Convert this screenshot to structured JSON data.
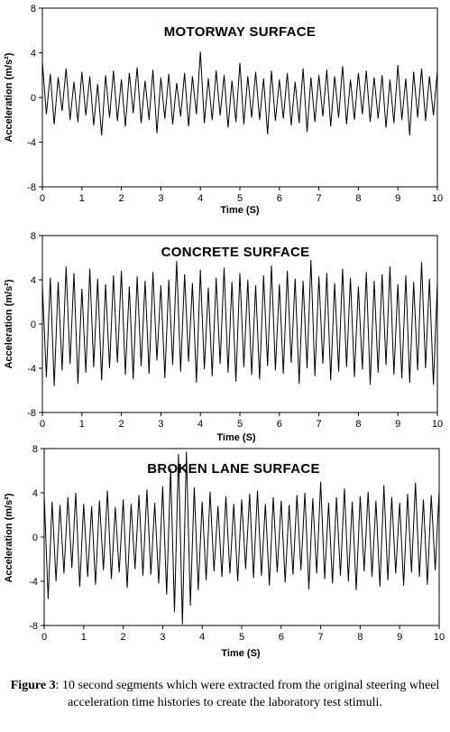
{
  "chart_data": [
    {
      "type": "line",
      "title": "MOTORWAY SURFACE",
      "xlabel": "Time (S)",
      "ylabel": "Acceleration (m/s²)",
      "xlim": [
        0,
        10
      ],
      "ylim": [
        -8,
        8
      ],
      "x_ticks": [
        "0",
        "1",
        "2",
        "3",
        "4",
        "5",
        "6",
        "7",
        "8",
        "9",
        "10"
      ],
      "y_ticks": [
        "8",
        "4",
        "0",
        "-4",
        "-8"
      ],
      "series": [
        {
          "x": [
            0,
            0.1,
            0.2,
            0.3,
            0.4,
            0.5,
            0.6,
            0.7,
            0.8,
            0.9,
            1,
            1.1,
            1.2,
            1.3,
            1.4,
            1.5,
            1.6,
            1.7,
            1.8,
            1.9,
            2,
            2.1,
            2.2,
            2.3,
            2.4,
            2.5,
            2.6,
            2.7,
            2.8,
            2.9,
            3,
            3.1,
            3.2,
            3.3,
            3.4,
            3.5,
            3.6,
            3.7,
            3.8,
            3.9,
            4,
            4.1,
            4.2,
            4.3,
            4.4,
            4.5,
            4.6,
            4.7,
            4.8,
            4.9,
            5,
            5.1,
            5.2,
            5.3,
            5.4,
            5.5,
            5.6,
            5.7,
            5.8,
            5.9,
            6,
            6.1,
            6.2,
            6.3,
            6.4,
            6.5,
            6.6,
            6.7,
            6.8,
            6.9,
            7,
            7.1,
            7.2,
            7.3,
            7.4,
            7.5,
            7.6,
            7.7,
            7.8,
            7.9,
            8,
            8.1,
            8.2,
            8.3,
            8.4,
            8.5,
            8.6,
            8.7,
            8.8,
            8.9,
            9,
            9.1,
            9.2,
            9.3,
            9.4,
            9.5,
            9.6,
            9.7,
            9.8,
            9.9,
            10
          ],
          "y": [
            3.2,
            -1.5,
            2.1,
            -2.4,
            1.8,
            -1.2,
            2.6,
            -2.0,
            1.4,
            -2.2,
            2.3,
            -1.6,
            1.9,
            -2.5,
            1.2,
            -3.4,
            2.0,
            -1.8,
            2.4,
            -2.1,
            1.6,
            -2.6,
            2.2,
            -1.4,
            2.7,
            -2.3,
            1.5,
            -2.0,
            2.5,
            -3.2,
            1.8,
            -1.9,
            2.1,
            -2.4,
            1.3,
            -1.7,
            2.2,
            -2.6,
            1.9,
            -1.5,
            4.1,
            -2.3,
            1.7,
            -2.0,
            2.4,
            -1.6,
            2.0,
            -2.7,
            1.5,
            -2.2,
            3.1,
            -2.4,
            1.9,
            -1.8,
            2.3,
            -2.0,
            1.7,
            -3.3,
            2.4,
            -2.1,
            1.6,
            -1.9,
            2.2,
            -2.5,
            1.4,
            -2.3,
            2.6,
            -3.1,
            1.8,
            -2.2,
            2.0,
            -1.7,
            2.5,
            -2.6,
            1.9,
            -1.8,
            2.8,
            -2.4,
            1.6,
            -2.0,
            2.2,
            -1.5,
            2.4,
            -2.2,
            1.8,
            -1.9,
            2.0,
            -2.7,
            1.6,
            -2.3,
            2.9,
            -2.0,
            1.7,
            -3.4,
            2.3,
            -1.8,
            2.6,
            -2.1,
            1.9,
            -1.6,
            2.4
          ]
        }
      ]
    },
    {
      "type": "line",
      "title": "CONCRETE SURFACE",
      "xlabel": "Time (S)",
      "ylabel": "Acceleration (m/s²)",
      "xlim": [
        0,
        10
      ],
      "ylim": [
        -8,
        8
      ],
      "x_ticks": [
        "0",
        "1",
        "2",
        "3",
        "4",
        "5",
        "6",
        "7",
        "8",
        "9",
        "10"
      ],
      "y_ticks": [
        "8",
        "4",
        "0",
        "-4",
        "-8"
      ],
      "series": [
        {
          "x": [
            0,
            0.1,
            0.2,
            0.3,
            0.4,
            0.5,
            0.6,
            0.7,
            0.8,
            0.9,
            1,
            1.1,
            1.2,
            1.3,
            1.4,
            1.5,
            1.6,
            1.7,
            1.8,
            1.9,
            2,
            2.1,
            2.2,
            2.3,
            2.4,
            2.5,
            2.6,
            2.7,
            2.8,
            2.9,
            3,
            3.1,
            3.2,
            3.3,
            3.4,
            3.5,
            3.6,
            3.7,
            3.8,
            3.9,
            4,
            4.1,
            4.2,
            4.3,
            4.4,
            4.5,
            4.6,
            4.7,
            4.8,
            4.9,
            5,
            5.1,
            5.2,
            5.3,
            5.4,
            5.5,
            5.6,
            5.7,
            5.8,
            5.9,
            6,
            6.1,
            6.2,
            6.3,
            6.4,
            6.5,
            6.6,
            6.7,
            6.8,
            6.9,
            7,
            7.1,
            7.2,
            7.3,
            7.4,
            7.5,
            7.6,
            7.7,
            7.8,
            7.9,
            8,
            8.1,
            8.2,
            8.3,
            8.4,
            8.5,
            8.6,
            8.7,
            8.8,
            8.9,
            9,
            9.1,
            9.2,
            9.3,
            9.4,
            9.5,
            9.6,
            9.7,
            9.8,
            9.9,
            10
          ],
          "y": [
            3.5,
            -4.8,
            4.2,
            -5.6,
            3.8,
            -4.2,
            5.2,
            -3.6,
            4.6,
            -5.4,
            3.2,
            -4.4,
            5.0,
            -3.9,
            4.1,
            -5.1,
            3.6,
            -4.0,
            4.4,
            -3.5,
            4.8,
            -4.6,
            3.4,
            -5.0,
            4.3,
            -3.8,
            3.9,
            -4.5,
            4.7,
            -3.3,
            3.5,
            -4.9,
            4.0,
            -3.7,
            5.7,
            -4.3,
            4.5,
            -3.4,
            3.7,
            -5.3,
            4.9,
            -4.1,
            3.3,
            -4.7,
            4.2,
            -3.6,
            5.1,
            -4.4,
            3.8,
            -5.2,
            4.6,
            -3.9,
            4.0,
            -4.6,
            3.5,
            -5.0,
            4.4,
            -3.8,
            5.3,
            -4.2,
            3.6,
            -4.5,
            4.8,
            -3.5,
            4.1,
            -5.4,
            3.9,
            -4.0,
            5.8,
            -4.7,
            4.3,
            -3.6,
            4.6,
            -5.1,
            3.7,
            -4.3,
            5.0,
            -3.9,
            4.2,
            -4.8,
            3.4,
            -4.1,
            4.7,
            -5.5,
            3.9,
            -4.4,
            4.5,
            -3.7,
            5.2,
            -4.6,
            3.6,
            -4.9,
            4.4,
            -5.3,
            3.8,
            -4.2,
            5.6,
            -4.0,
            4.1,
            -5.5,
            3.7
          ]
        }
      ]
    },
    {
      "type": "line",
      "title": "BROKEN LANE SURFACE",
      "xlabel": "Time (S)",
      "ylabel": "Acceleration (m/s²)",
      "xlim": [
        0,
        10
      ],
      "ylim": [
        -8,
        8
      ],
      "x_ticks": [
        "0",
        "1",
        "2",
        "3",
        "4",
        "5",
        "6",
        "7",
        "8",
        "9",
        "10"
      ],
      "y_ticks": [
        "8",
        "4",
        "0",
        "-4",
        "-8"
      ],
      "series": [
        {
          "x": [
            0,
            0.1,
            0.2,
            0.3,
            0.4,
            0.5,
            0.6,
            0.7,
            0.8,
            0.9,
            1,
            1.1,
            1.2,
            1.3,
            1.4,
            1.5,
            1.6,
            1.7,
            1.8,
            1.9,
            2,
            2.1,
            2.2,
            2.3,
            2.4,
            2.5,
            2.6,
            2.7,
            2.8,
            2.9,
            3,
            3.1,
            3.2,
            3.3,
            3.4,
            3.5,
            3.6,
            3.7,
            3.8,
            3.9,
            4,
            4.1,
            4.2,
            4.3,
            4.4,
            4.5,
            4.6,
            4.7,
            4.8,
            4.9,
            5,
            5.1,
            5.2,
            5.3,
            5.4,
            5.5,
            5.6,
            5.7,
            5.8,
            5.9,
            6,
            6.1,
            6.2,
            6.3,
            6.4,
            6.5,
            6.6,
            6.7,
            6.8,
            6.9,
            7,
            7.1,
            7.2,
            7.3,
            7.4,
            7.5,
            7.6,
            7.7,
            7.8,
            7.9,
            8,
            8.1,
            8.2,
            8.3,
            8.4,
            8.5,
            8.6,
            8.7,
            8.8,
            8.9,
            9,
            9.1,
            9.2,
            9.3,
            9.4,
            9.5,
            9.6,
            9.7,
            9.8,
            9.9,
            10
          ],
          "y": [
            3.8,
            -5.6,
            3.2,
            -4.0,
            2.9,
            -3.3,
            3.6,
            -2.8,
            4.0,
            -4.5,
            3.0,
            -3.6,
            2.8,
            -4.3,
            3.3,
            -3.0,
            4.2,
            -3.8,
            2.7,
            -3.2,
            3.4,
            -4.6,
            3.0,
            -2.9,
            3.8,
            -3.5,
            4.3,
            -3.4,
            3.1,
            -4.2,
            4.6,
            -5.2,
            6.2,
            -6.8,
            7.5,
            -7.9,
            7.7,
            -6.2,
            4.5,
            -4.8,
            3.2,
            -3.9,
            4.1,
            -3.1,
            2.8,
            -3.6,
            3.7,
            -3.3,
            3.0,
            -4.0,
            3.4,
            -2.9,
            3.9,
            -3.7,
            4.2,
            -3.5,
            3.0,
            -4.4,
            3.6,
            -3.2,
            3.3,
            -4.1,
            2.9,
            -3.4,
            3.8,
            -3.0,
            4.0,
            -4.7,
            3.5,
            -3.3,
            5.0,
            -3.8,
            3.1,
            -4.2,
            3.6,
            -3.5,
            4.4,
            -4.0,
            3.2,
            -4.8,
            3.7,
            -3.1,
            4.1,
            -3.6,
            3.3,
            -4.5,
            4.7,
            -3.9,
            3.6,
            -3.3,
            3.1,
            -4.4,
            3.9,
            -3.2,
            4.9,
            -3.6,
            3.4,
            -4.3,
            3.8,
            -3.0,
            4.2
          ]
        }
      ]
    }
  ],
  "caption": {
    "label": "Figure 3",
    "text": ": 10 second segments which were extracted from the original steering wheel acceleration time histories to create the laboratory test stimuli."
  }
}
